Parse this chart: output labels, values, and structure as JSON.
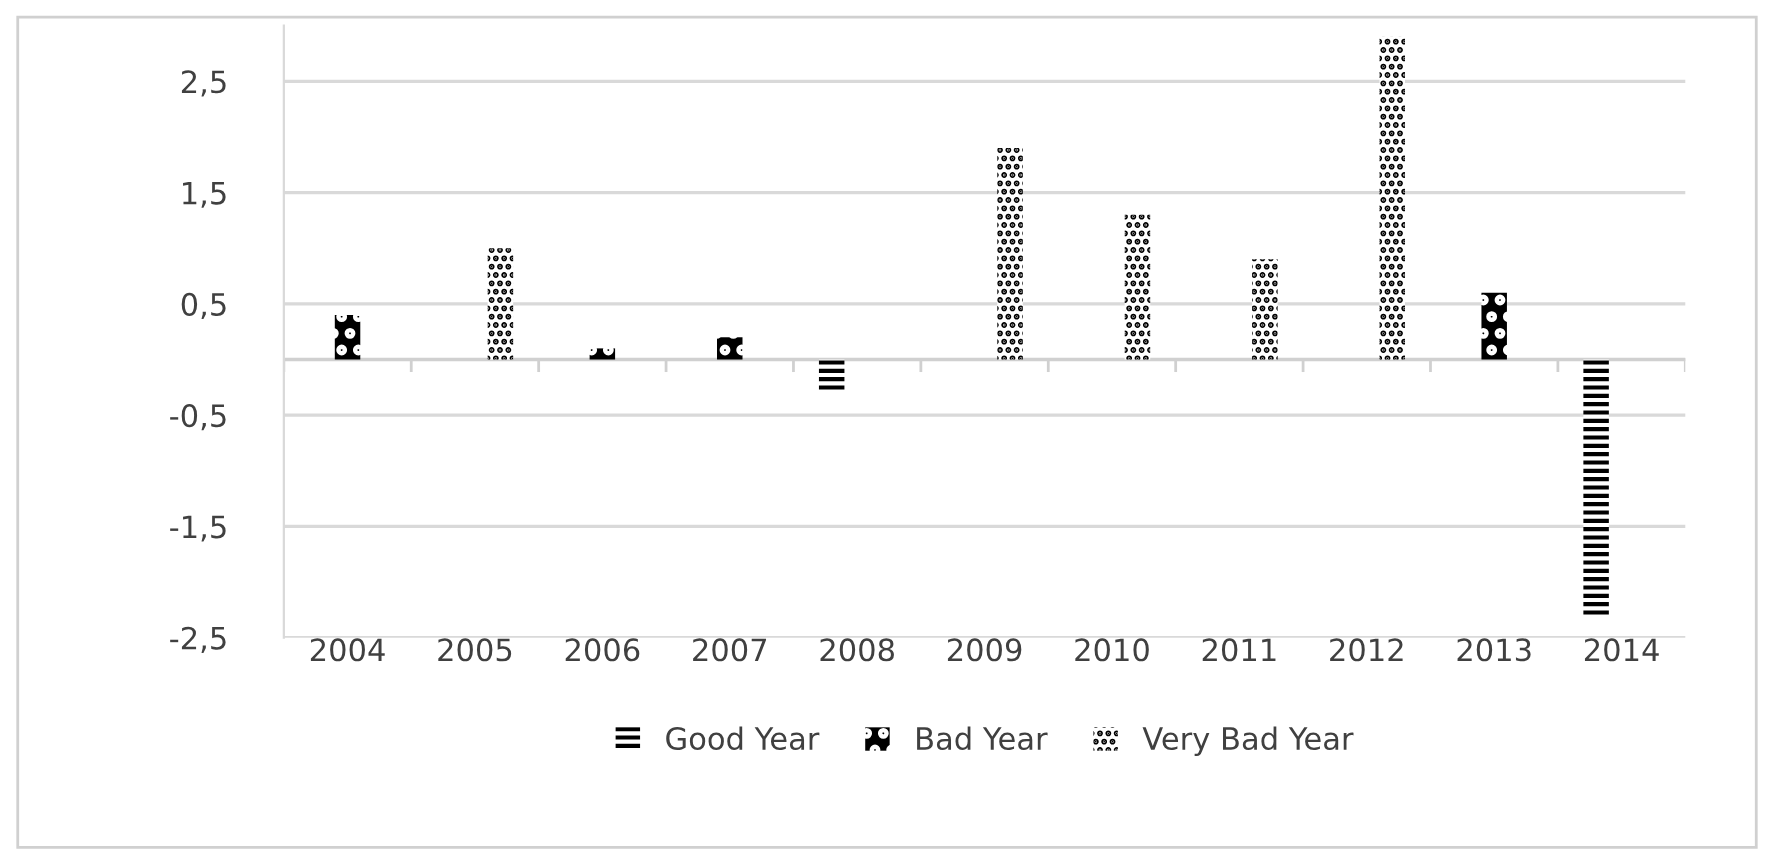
{
  "chart_data": {
    "type": "bar",
    "categories": [
      "2004",
      "2005",
      "2006",
      "2007",
      "2008",
      "2009",
      "2010",
      "2011",
      "2012",
      "2013",
      "2014"
    ],
    "series": [
      {
        "name": "Good Year",
        "color": "#000000",
        "values": [
          null,
          null,
          null,
          null,
          -0.3,
          null,
          null,
          null,
          null,
          null,
          -2.3
        ]
      },
      {
        "name": "Bad Year",
        "color": "#000000",
        "values": [
          0.4,
          null,
          0.1,
          0.2,
          null,
          null,
          null,
          null,
          null,
          0.6,
          null
        ]
      },
      {
        "name": "Very Bad Year",
        "color": "#000000",
        "values": [
          null,
          1.0,
          null,
          null,
          null,
          1.9,
          1.3,
          0.9,
          2.9,
          null,
          null
        ]
      }
    ],
    "ylim": [
      -2.5,
      3.0
    ],
    "yticks": [
      {
        "value": -2.5,
        "label": "-2,5"
      },
      {
        "value": -1.5,
        "label": "-1,5"
      },
      {
        "value": -0.5,
        "label": "-0,5"
      },
      {
        "value": 0.5,
        "label": "0,5"
      },
      {
        "value": 1.5,
        "label": "1,5"
      },
      {
        "value": 2.5,
        "label": "2,5"
      }
    ],
    "grid": "y",
    "legend": "bottom"
  }
}
